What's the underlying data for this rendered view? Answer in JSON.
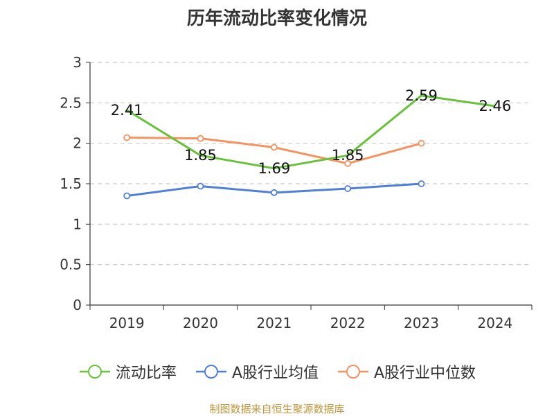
{
  "chart_data": {
    "type": "line",
    "title": "历年流动比率变化情况",
    "categories": [
      "2019",
      "2020",
      "2021",
      "2022",
      "2023",
      "2024"
    ],
    "ylim": [
      0,
      3
    ],
    "yticks": [
      "0",
      "0.5",
      "1",
      "1.5",
      "2",
      "2.5",
      "3"
    ],
    "grid": true,
    "legend_position": "bottom",
    "series": [
      {
        "name": "流动比率",
        "color": "#67c23a",
        "values": [
          2.41,
          1.85,
          1.69,
          1.85,
          2.59,
          2.46
        ],
        "labels": [
          "2.41",
          "1.85",
          "1.69",
          "1.85",
          "2.59",
          "2.46"
        ],
        "show_markers": false
      },
      {
        "name": "A股行业均值",
        "color": "#4f7fd8",
        "values": [
          1.35,
          1.47,
          1.39,
          1.44,
          1.5,
          null
        ],
        "show_markers": true
      },
      {
        "name": "A股行业中位数",
        "color": "#f5925f",
        "values": [
          2.07,
          2.06,
          1.95,
          1.75,
          2.0,
          null
        ],
        "show_markers": true
      }
    ]
  },
  "footer": {
    "source": "制图数据来自恒生聚源数据库"
  }
}
